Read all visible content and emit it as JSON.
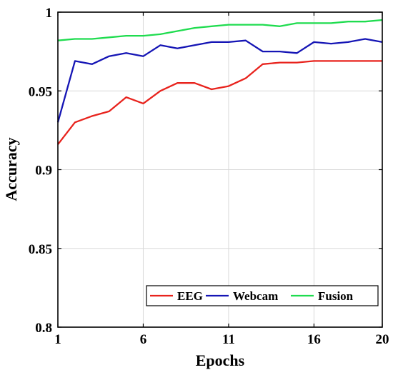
{
  "chart_data": {
    "type": "line",
    "title": "",
    "xlabel": "Epochs",
    "ylabel": "Accuracy",
    "xlim": [
      1,
      20
    ],
    "ylim": [
      0.8,
      1.0
    ],
    "grid": true,
    "legend_placement": "bottom-right",
    "xticks": [
      1,
      6,
      11,
      16,
      20
    ],
    "yticks": [
      0.8,
      0.85,
      0.9,
      0.95,
      1.0
    ],
    "xtick_labels": [
      "1",
      "6",
      "11",
      "16",
      "20"
    ],
    "ytick_labels": [
      "0.8",
      "0.85",
      "0.9",
      "0.95",
      "1"
    ],
    "x": [
      1,
      2,
      3,
      4,
      5,
      6,
      7,
      8,
      9,
      10,
      11,
      12,
      13,
      14,
      15,
      16,
      17,
      18,
      19,
      20
    ],
    "series": [
      {
        "name": "EEG",
        "color": "#e8231d",
        "values": [
          0.916,
          0.93,
          0.934,
          0.937,
          0.946,
          0.942,
          0.95,
          0.955,
          0.955,
          0.951,
          0.953,
          0.958,
          0.967,
          0.968,
          0.968,
          0.969,
          0.969,
          0.969,
          0.969,
          0.969
        ]
      },
      {
        "name": "Webcam",
        "color": "#1515b5",
        "values": [
          0.93,
          0.969,
          0.967,
          0.972,
          0.974,
          0.972,
          0.979,
          0.977,
          0.979,
          0.981,
          0.981,
          0.982,
          0.975,
          0.975,
          0.974,
          0.981,
          0.98,
          0.981,
          0.983,
          0.981
        ]
      },
      {
        "name": "Fusion",
        "color": "#1fdc4f",
        "values": [
          0.982,
          0.983,
          0.983,
          0.984,
          0.985,
          0.985,
          0.986,
          0.988,
          0.99,
          0.991,
          0.992,
          0.992,
          0.992,
          0.991,
          0.993,
          0.993,
          0.993,
          0.994,
          0.994,
          0.995
        ]
      }
    ]
  }
}
